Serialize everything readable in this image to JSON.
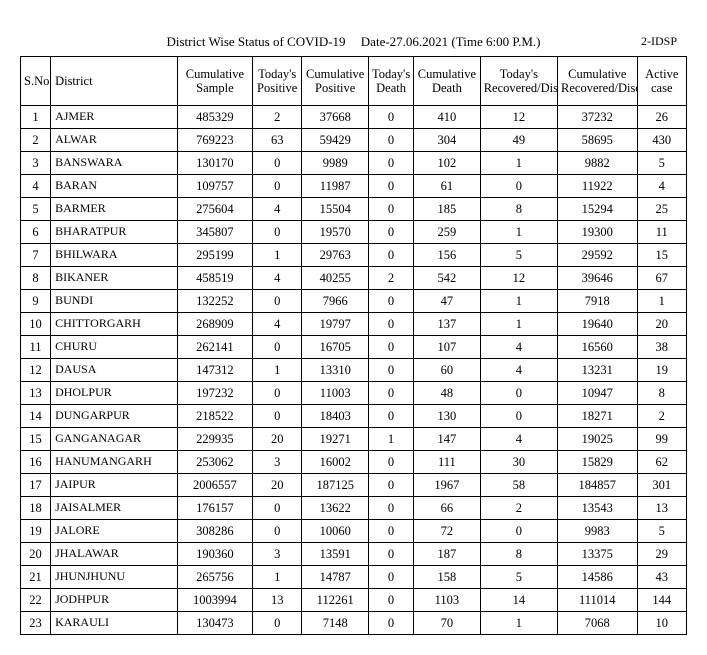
{
  "header": {
    "code": "2-IDSP",
    "title_prefix": "District Wise Status of  COVID-19",
    "date_label": "Date-27.06.2021 (Time 6:00 P.M.)"
  },
  "columns": {
    "sno": "S.No",
    "district": "District",
    "cum_sample": "Cumulative Sample",
    "today_pos": "Today's Positive",
    "cum_pos": "Cumulative Positive",
    "today_death": "Today's Death",
    "cum_death": "Cumulative Death",
    "today_rec": "Today's Recovered/Discharged",
    "cum_rec": "Cumulative Recovered/Discharged",
    "active": "Active case"
  },
  "rows": [
    {
      "n": 1,
      "d": "AJMER",
      "cs": "485329",
      "tp": "2",
      "cp": "37668",
      "td": "0",
      "cd": "410",
      "tr": "12",
      "cr": "37232",
      "ac": "26"
    },
    {
      "n": 2,
      "d": "ALWAR",
      "cs": "769223",
      "tp": "63",
      "cp": "59429",
      "td": "0",
      "cd": "304",
      "tr": "49",
      "cr": "58695",
      "ac": "430"
    },
    {
      "n": 3,
      "d": "BANSWARA",
      "cs": "130170",
      "tp": "0",
      "cp": "9989",
      "td": "0",
      "cd": "102",
      "tr": "1",
      "cr": "9882",
      "ac": "5"
    },
    {
      "n": 4,
      "d": "BARAN",
      "cs": "109757",
      "tp": "0",
      "cp": "11987",
      "td": "0",
      "cd": "61",
      "tr": "0",
      "cr": "11922",
      "ac": "4"
    },
    {
      "n": 5,
      "d": "BARMER",
      "cs": "275604",
      "tp": "4",
      "cp": "15504",
      "td": "0",
      "cd": "185",
      "tr": "8",
      "cr": "15294",
      "ac": "25"
    },
    {
      "n": 6,
      "d": "BHARATPUR",
      "cs": "345807",
      "tp": "0",
      "cp": "19570",
      "td": "0",
      "cd": "259",
      "tr": "1",
      "cr": "19300",
      "ac": "11"
    },
    {
      "n": 7,
      "d": "BHILWARA",
      "cs": "295199",
      "tp": "1",
      "cp": "29763",
      "td": "0",
      "cd": "156",
      "tr": "5",
      "cr": "29592",
      "ac": "15"
    },
    {
      "n": 8,
      "d": "BIKANER",
      "cs": "458519",
      "tp": "4",
      "cp": "40255",
      "td": "2",
      "cd": "542",
      "tr": "12",
      "cr": "39646",
      "ac": "67"
    },
    {
      "n": 9,
      "d": "BUNDI",
      "cs": "132252",
      "tp": "0",
      "cp": "7966",
      "td": "0",
      "cd": "47",
      "tr": "1",
      "cr": "7918",
      "ac": "1"
    },
    {
      "n": 10,
      "d": "CHITTORGARH",
      "cs": "268909",
      "tp": "4",
      "cp": "19797",
      "td": "0",
      "cd": "137",
      "tr": "1",
      "cr": "19640",
      "ac": "20"
    },
    {
      "n": 11,
      "d": "CHURU",
      "cs": "262141",
      "tp": "0",
      "cp": "16705",
      "td": "0",
      "cd": "107",
      "tr": "4",
      "cr": "16560",
      "ac": "38"
    },
    {
      "n": 12,
      "d": "DAUSA",
      "cs": "147312",
      "tp": "1",
      "cp": "13310",
      "td": "0",
      "cd": "60",
      "tr": "4",
      "cr": "13231",
      "ac": "19"
    },
    {
      "n": 13,
      "d": "DHOLPUR",
      "cs": "197232",
      "tp": "0",
      "cp": "11003",
      "td": "0",
      "cd": "48",
      "tr": "0",
      "cr": "10947",
      "ac": "8"
    },
    {
      "n": 14,
      "d": "DUNGARPUR",
      "cs": "218522",
      "tp": "0",
      "cp": "18403",
      "td": "0",
      "cd": "130",
      "tr": "0",
      "cr": "18271",
      "ac": "2"
    },
    {
      "n": 15,
      "d": "GANGANAGAR",
      "cs": "229935",
      "tp": "20",
      "cp": "19271",
      "td": "1",
      "cd": "147",
      "tr": "4",
      "cr": "19025",
      "ac": "99"
    },
    {
      "n": 16,
      "d": "HANUMANGARH",
      "cs": "253062",
      "tp": "3",
      "cp": "16002",
      "td": "0",
      "cd": "111",
      "tr": "30",
      "cr": "15829",
      "ac": "62"
    },
    {
      "n": 17,
      "d": "JAIPUR",
      "cs": "2006557",
      "tp": "20",
      "cp": "187125",
      "td": "0",
      "cd": "1967",
      "tr": "58",
      "cr": "184857",
      "ac": "301"
    },
    {
      "n": 18,
      "d": "JAISALMER",
      "cs": "176157",
      "tp": "0",
      "cp": "13622",
      "td": "0",
      "cd": "66",
      "tr": "2",
      "cr": "13543",
      "ac": "13"
    },
    {
      "n": 19,
      "d": "JALORE",
      "cs": "308286",
      "tp": "0",
      "cp": "10060",
      "td": "0",
      "cd": "72",
      "tr": "0",
      "cr": "9983",
      "ac": "5"
    },
    {
      "n": 20,
      "d": "JHALAWAR",
      "cs": "190360",
      "tp": "3",
      "cp": "13591",
      "td": "0",
      "cd": "187",
      "tr": "8",
      "cr": "13375",
      "ac": "29"
    },
    {
      "n": 21,
      "d": "JHUNJHUNU",
      "cs": "265756",
      "tp": "1",
      "cp": "14787",
      "td": "0",
      "cd": "158",
      "tr": "5",
      "cr": "14586",
      "ac": "43"
    },
    {
      "n": 22,
      "d": "JODHPUR",
      "cs": "1003994",
      "tp": "13",
      "cp": "112261",
      "td": "0",
      "cd": "1103",
      "tr": "14",
      "cr": "111014",
      "ac": "144"
    },
    {
      "n": 23,
      "d": "KARAULI",
      "cs": "130473",
      "tp": "0",
      "cp": "7148",
      "td": "0",
      "cd": "70",
      "tr": "1",
      "cr": "7068",
      "ac": "10"
    }
  ]
}
